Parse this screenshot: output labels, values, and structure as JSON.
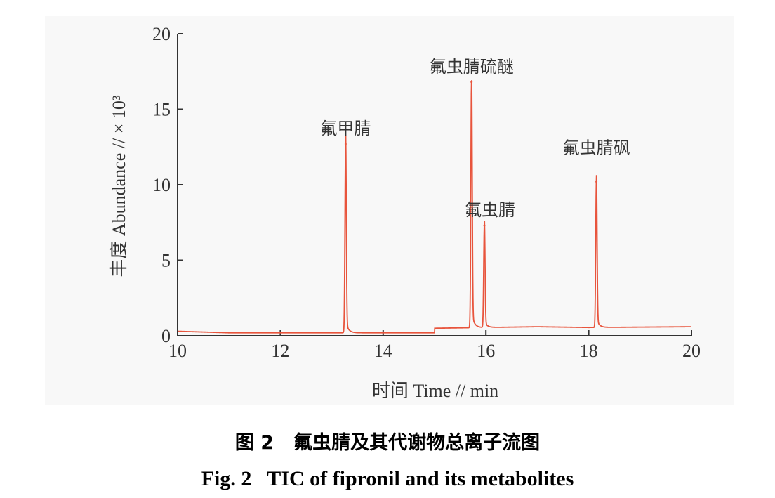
{
  "chart_data": {
    "type": "line",
    "xlabel": "时间 Time // min",
    "ylabel": "丰度 Abundance // × 10³",
    "xlim": [
      10,
      20
    ],
    "ylim": [
      0,
      20
    ],
    "x_ticks": [
      10,
      12,
      14,
      16,
      18,
      20
    ],
    "y_ticks": [
      0,
      5,
      10,
      15,
      20
    ],
    "grid": false,
    "series": [
      {
        "color": "#e8543c",
        "baseline": [
          [
            10,
            0.3
          ],
          [
            11,
            0.2
          ],
          [
            13,
            0.2
          ],
          [
            15,
            0.2
          ],
          [
            15.0,
            0.5
          ],
          [
            17,
            0.6
          ],
          [
            18,
            0.55
          ],
          [
            20,
            0.6
          ]
        ],
        "peaks": [
          {
            "label": "氟甲腈",
            "x": 13.27,
            "y": 12.7
          },
          {
            "label": "氟虫腈硫醚",
            "x": 15.72,
            "y": 16.8
          },
          {
            "label": "氟虫腈",
            "x": 15.97,
            "y": 7.3
          },
          {
            "label": "氟虫腈砜",
            "x": 18.15,
            "y": 10.2
          }
        ]
      }
    ]
  },
  "caption": {
    "cn": "图 2   氟虫腈及其代谢物总离子流图",
    "en": "Fig. 2   TIC of fipronil and its metabolites"
  }
}
